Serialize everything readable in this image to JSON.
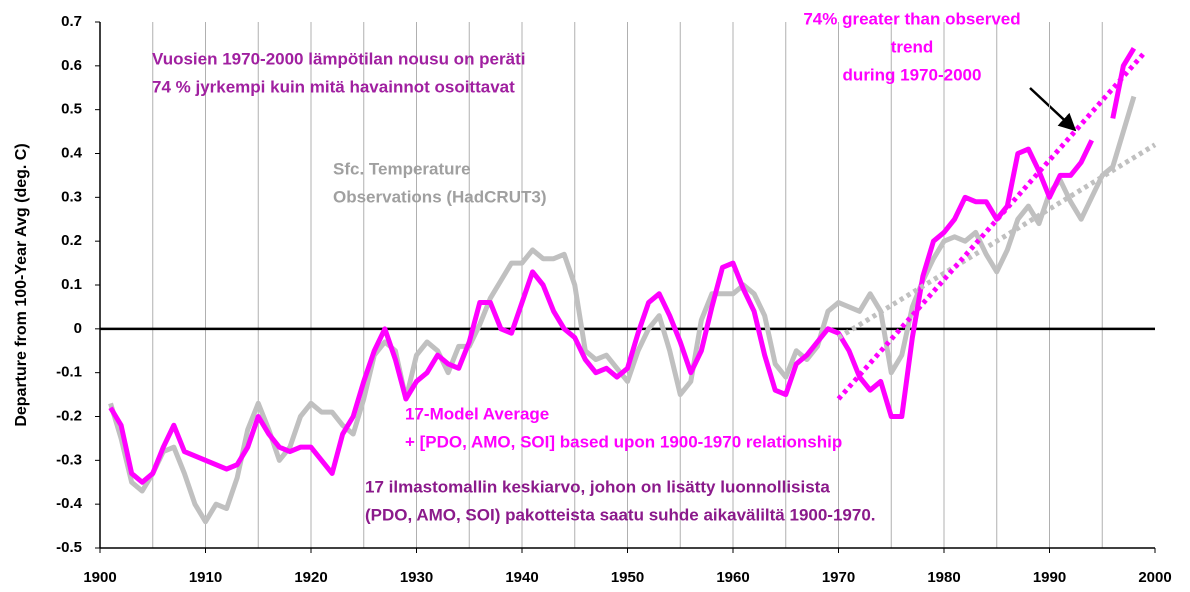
{
  "chart_data": {
    "type": "line",
    "ylabel": "Departure from 100-Year Avg (deg. C)",
    "xlim": [
      1900,
      2000
    ],
    "xticks": [
      1900,
      1910,
      1920,
      1930,
      1940,
      1950,
      1960,
      1970,
      1980,
      1990,
      2000
    ],
    "xgrid": [
      1905,
      1910,
      1915,
      1920,
      1925,
      1930,
      1935,
      1940,
      1945,
      1950,
      1955,
      1960,
      1965,
      1970,
      1975,
      1980,
      1985,
      1990,
      1995
    ],
    "ylim": [
      -0.5,
      0.7
    ],
    "yticks": [
      0.7,
      0.6,
      0.5,
      0.4,
      0.3,
      0.2,
      0.1,
      0,
      -0.1,
      -0.2,
      -0.3,
      -0.4,
      -0.5
    ],
    "x": [
      1901,
      1902,
      1903,
      1904,
      1905,
      1906,
      1907,
      1908,
      1909,
      1910,
      1911,
      1912,
      1913,
      1914,
      1915,
      1916,
      1917,
      1918,
      1919,
      1920,
      1921,
      1922,
      1923,
      1924,
      1925,
      1926,
      1927,
      1928,
      1929,
      1930,
      1931,
      1932,
      1933,
      1934,
      1935,
      1936,
      1937,
      1938,
      1939,
      1940,
      1941,
      1942,
      1943,
      1944,
      1945,
      1946,
      1947,
      1948,
      1949,
      1950,
      1951,
      1952,
      1953,
      1954,
      1955,
      1956,
      1957,
      1958,
      1959,
      1960,
      1961,
      1962,
      1963,
      1964,
      1965,
      1966,
      1967,
      1968,
      1969,
      1970,
      1971,
      1972,
      1973,
      1974,
      1975,
      1976,
      1977,
      1978,
      1979,
      1980,
      1981,
      1982,
      1983,
      1984,
      1985,
      1986,
      1987,
      1988,
      1989,
      1990,
      1991,
      1992,
      1993,
      1994,
      1995,
      1996,
      1997,
      1998
    ],
    "series": [
      {
        "color": "#c0c0c0",
        "values": [
          -0.17,
          -0.25,
          -0.35,
          -0.37,
          -0.33,
          -0.28,
          -0.27,
          -0.33,
          -0.4,
          -0.44,
          -0.4,
          -0.41,
          -0.34,
          -0.23,
          -0.17,
          -0.23,
          -0.3,
          -0.27,
          -0.2,
          -0.17,
          -0.19,
          -0.19,
          -0.22,
          -0.24,
          -0.16,
          -0.06,
          -0.03,
          -0.05,
          -0.16,
          -0.06,
          -0.03,
          -0.05,
          -0.1,
          -0.04,
          -0.04,
          0.01,
          0.07,
          0.11,
          0.15,
          0.15,
          0.18,
          0.16,
          0.16,
          0.17,
          0.1,
          -0.05,
          -0.07,
          -0.06,
          -0.09,
          -0.12,
          -0.05,
          0.0,
          0.03,
          -0.05,
          -0.15,
          -0.12,
          0.02,
          0.08,
          0.08,
          0.08,
          0.1,
          0.08,
          0.03,
          -0.08,
          -0.11,
          -0.05,
          -0.07,
          -0.04,
          0.04,
          0.06,
          0.05,
          0.04,
          0.08,
          0.04,
          -0.1,
          -0.06,
          0.05,
          0.11,
          0.16,
          0.2,
          0.21,
          0.2,
          0.22,
          0.17,
          0.13,
          0.18,
          0.25,
          0.28,
          0.24,
          0.31,
          0.34,
          0.29,
          0.25,
          0.3,
          0.35,
          0.37,
          0.45,
          0.53
        ]
      },
      {
        "color": "#ff00ff",
        "values": [
          -0.18,
          -0.22,
          -0.33,
          -0.35,
          -0.33,
          -0.27,
          -0.22,
          -0.28,
          -0.29,
          -0.3,
          -0.31,
          -0.32,
          -0.31,
          -0.27,
          -0.2,
          -0.24,
          -0.27,
          -0.28,
          -0.27,
          -0.27,
          -0.3,
          -0.33,
          -0.24,
          -0.2,
          -0.12,
          -0.05,
          0.0,
          -0.07,
          -0.16,
          -0.12,
          -0.1,
          -0.06,
          -0.08,
          -0.09,
          -0.03,
          0.06,
          0.06,
          0.0,
          -0.01,
          0.06,
          0.13,
          0.1,
          0.04,
          0.0,
          -0.02,
          -0.07,
          -0.1,
          -0.09,
          -0.11,
          -0.09,
          -0.01,
          0.06,
          0.08,
          0.03,
          -0.03,
          -0.1,
          -0.05,
          0.05,
          0.14,
          0.15,
          0.09,
          0.04,
          -0.06,
          -0.14,
          -0.15,
          -0.08,
          -0.06,
          -0.03,
          0.0,
          -0.01,
          -0.05,
          -0.11,
          -0.14,
          -0.12,
          -0.2,
          -0.2,
          -0.02,
          0.12,
          0.2,
          0.22,
          0.25,
          0.3,
          0.29,
          0.29,
          0.25,
          0.28,
          0.4,
          0.41,
          0.36,
          0.3,
          0.35,
          0.35,
          0.38,
          0.43,
          null,
          0.48,
          0.6,
          0.64
        ]
      }
    ],
    "trend_lines": [
      {
        "color": "#c0c0c0",
        "x": [
          1970,
          2000
        ],
        "values": [
          -0.02,
          0.42
        ]
      },
      {
        "color": "#ff00ff",
        "x": [
          1970,
          1999
        ],
        "values": [
          -0.16,
          0.63
        ]
      }
    ],
    "annotations": [
      {
        "color": "#a020a0",
        "lines": [
          "Vuosien 1970-2000 lämpötilan nousu on peräti",
          "74 % jyrkempi kuin mitä havainnot osoittavat"
        ]
      },
      {
        "color": "#a0a0a0",
        "lines": [
          "Sfc. Temperature",
          "Observations (HadCRUT3)"
        ]
      },
      {
        "color": "#ff00ff",
        "lines": [
          "17-Model Average",
          "+ [PDO, AMO, SOI] based upon 1900-1970 relationship"
        ]
      },
      {
        "color": "#8b1a8b",
        "lines": [
          "17 ilmastomallin keskiarvo, johon on lisätty luonnollisista",
          "(PDO, AMO, SOI) pakotteista saatu suhde aikaväliltä 1900-1970."
        ]
      },
      {
        "color": "#ff00ff",
        "lines": [
          "74% greater than observed",
          "trend",
          "during 1970-2000"
        ]
      }
    ]
  }
}
